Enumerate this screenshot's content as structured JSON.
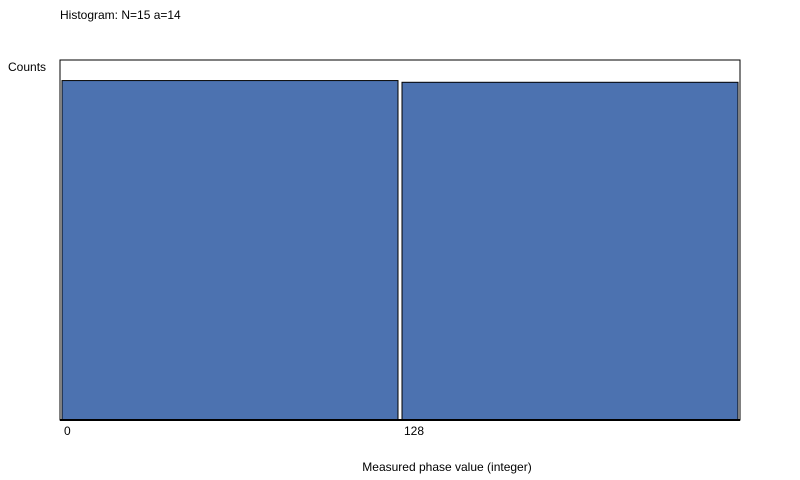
{
  "chart_data": {
    "type": "bar",
    "title": "Histogram: N=15 a=14",
    "ylabel": "Counts",
    "xlabel": "Measured phase value (integer)",
    "categories": [
      "0",
      "128"
    ],
    "values": [
      0.99,
      0.985
    ],
    "ylim": [
      0,
      1.05
    ],
    "grid": false,
    "legend": "none",
    "colors": {
      "bar_fill": "#4c72b0",
      "bar_edge": "#000000",
      "axes_edge": "#000000",
      "background": "#ffffff"
    }
  }
}
